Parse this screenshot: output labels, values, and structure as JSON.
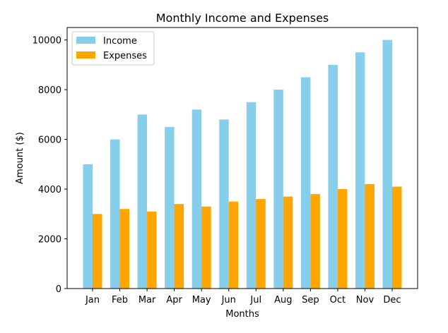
{
  "chart_data": {
    "type": "bar",
    "title": "Monthly Income and Expenses",
    "xlabel": "Months",
    "ylabel": "Amount ($)",
    "categories": [
      "Jan",
      "Feb",
      "Mar",
      "Apr",
      "May",
      "Jun",
      "Jul",
      "Aug",
      "Sep",
      "Oct",
      "Nov",
      "Dec"
    ],
    "series": [
      {
        "name": "Income",
        "color": "#87CEEB",
        "values": [
          5000,
          6000,
          7000,
          6500,
          7200,
          6800,
          7500,
          8000,
          8500,
          9000,
          9500,
          10000
        ]
      },
      {
        "name": "Expenses",
        "color": "#FFA500",
        "values": [
          3000,
          3200,
          3100,
          3400,
          3300,
          3500,
          3600,
          3700,
          3800,
          4000,
          4200,
          4100
        ]
      }
    ],
    "ylim": [
      0,
      10500
    ],
    "yticks": [
      0,
      2000,
      4000,
      6000,
      8000,
      10000
    ],
    "grid": false,
    "legend_position": "top-left"
  }
}
